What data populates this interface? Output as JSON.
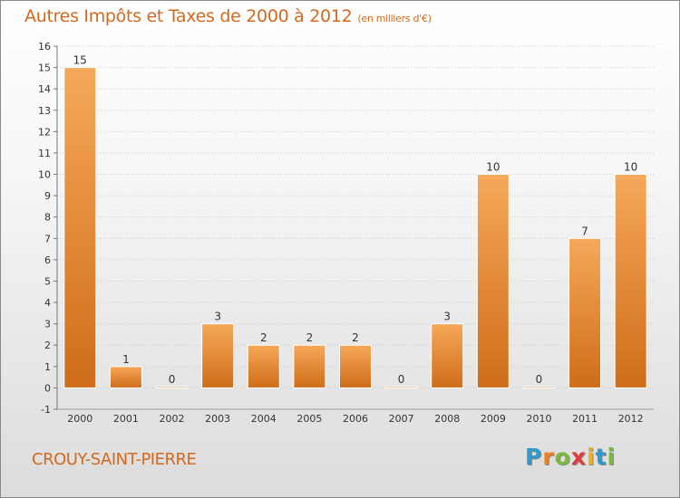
{
  "title": "Autres Impôts et Taxes de 2000 à 2012",
  "subtitle": "(en milliers d'€)",
  "town": "CROUY-SAINT-PIERRE",
  "logo": {
    "letters": [
      "P",
      "r",
      "o",
      "x",
      "i",
      "t",
      "i"
    ],
    "colors": [
      "#2e9ad0",
      "#f07f1e",
      "#7cba3d",
      "#e23b3b",
      "#f2b01e",
      "#2e9ad0",
      "#7cba3d"
    ]
  },
  "colors": {
    "title": "#d2691e",
    "bar_top": "#f6a85a",
    "bar_bottom": "#cf6d18",
    "grid": "#cccccc"
  },
  "chart_data": {
    "type": "bar",
    "title": "Autres Impôts et Taxes de 2000 à 2012",
    "categories": [
      "2000",
      "2001",
      "2002",
      "2003",
      "2004",
      "2005",
      "2006",
      "2007",
      "2008",
      "2009",
      "2010",
      "2011",
      "2012"
    ],
    "values": [
      15,
      1,
      0,
      3,
      2,
      2,
      2,
      0,
      3,
      10,
      0,
      7,
      10
    ],
    "data_labels": [
      "15",
      "1",
      "0",
      "3",
      "2",
      "2",
      "2",
      "0",
      "3",
      "10",
      "0",
      "7",
      "10"
    ],
    "ylim": [
      -1,
      16
    ],
    "yticks": [
      "-1",
      "0",
      "1",
      "2",
      "3",
      "4",
      "5",
      "6",
      "7",
      "8",
      "9",
      "10",
      "11",
      "12",
      "13",
      "14",
      "15",
      "16"
    ],
    "grid": true,
    "xlabel": "",
    "ylabel": ""
  }
}
